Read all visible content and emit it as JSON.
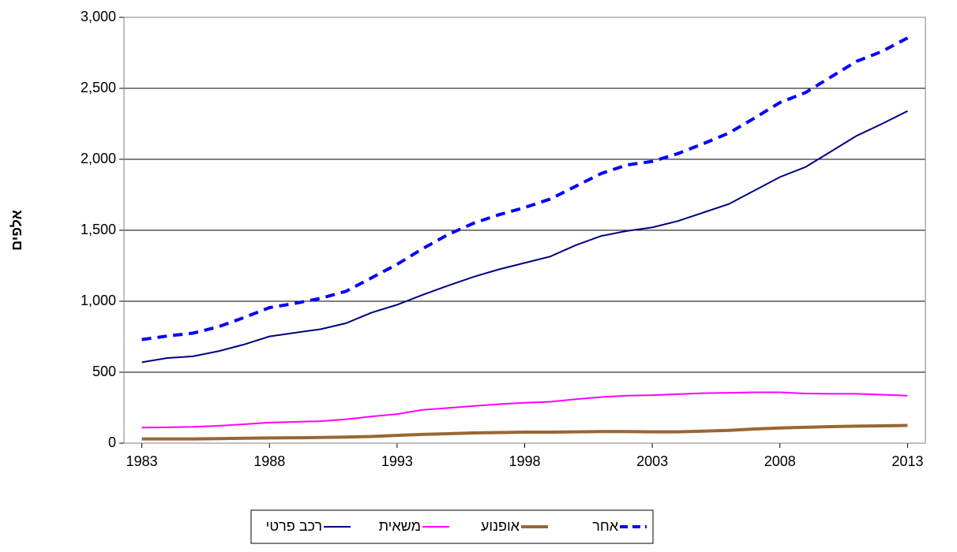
{
  "chart_data": {
    "type": "line",
    "y_label": "אלפים",
    "x": [
      1983,
      1984,
      1985,
      1986,
      1987,
      1988,
      1989,
      1990,
      1991,
      1992,
      1993,
      1994,
      1995,
      1996,
      1997,
      1998,
      1999,
      2000,
      2001,
      2002,
      2003,
      2004,
      2005,
      2006,
      2007,
      2008,
      2009,
      2010,
      2011,
      2012,
      2013
    ],
    "xlim": [
      1982.3,
      2013.7
    ],
    "xticks": [
      1983,
      1988,
      1993,
      1998,
      2003,
      2008,
      2013
    ],
    "ylim": [
      0,
      3000
    ],
    "yticks": [
      0,
      500,
      {
        "value": 1000,
        "label": "1,000"
      },
      {
        "value": 1500,
        "label": "1,500"
      },
      {
        "value": 2000,
        "label": "2,000"
      },
      {
        "value": 2500,
        "label": "2,500"
      },
      {
        "value": 3000,
        "label": "3,000"
      }
    ],
    "grid": true,
    "legend": "bottom",
    "series": [
      {
        "name": "רכב פרטי",
        "color": "#000080",
        "width": 2,
        "dashed": false,
        "values": [
          570,
          600,
          612,
          648,
          695,
          752,
          778,
          803,
          845,
          920,
          975,
          1045,
          1110,
          1172,
          1225,
          1270,
          1315,
          1395,
          1460,
          1495,
          1520,
          1565,
          1625,
          1685,
          1780,
          1875,
          1945,
          2055,
          2165,
          2250,
          2340
        ]
      },
      {
        "name": "משאית",
        "color": "#ff00ff",
        "width": 2,
        "dashed": false,
        "values": [
          110,
          112,
          115,
          122,
          133,
          145,
          150,
          155,
          168,
          188,
          205,
          235,
          248,
          262,
          275,
          285,
          292,
          310,
          325,
          335,
          338,
          345,
          352,
          355,
          358,
          358,
          350,
          348,
          348,
          342,
          335
        ]
      },
      {
        "name": "אופנוע",
        "color": "#996633",
        "width": 4,
        "dashed": false,
        "values": [
          30,
          30,
          30,
          32,
          35,
          37,
          38,
          40,
          43,
          47,
          55,
          62,
          67,
          72,
          75,
          78,
          78,
          80,
          82,
          82,
          80,
          80,
          85,
          90,
          100,
          107,
          112,
          117,
          120,
          122,
          125
        ]
      },
      {
        "name": "אחר",
        "color": "#0000ff",
        "width": 4,
        "dashed": true,
        "values": [
          730,
          755,
          775,
          820,
          885,
          955,
          985,
          1020,
          1070,
          1165,
          1260,
          1370,
          1470,
          1550,
          1610,
          1660,
          1720,
          1810,
          1900,
          1960,
          1985,
          2040,
          2110,
          2185,
          2290,
          2400,
          2470,
          2580,
          2690,
          2760,
          2855
        ]
      }
    ]
  }
}
